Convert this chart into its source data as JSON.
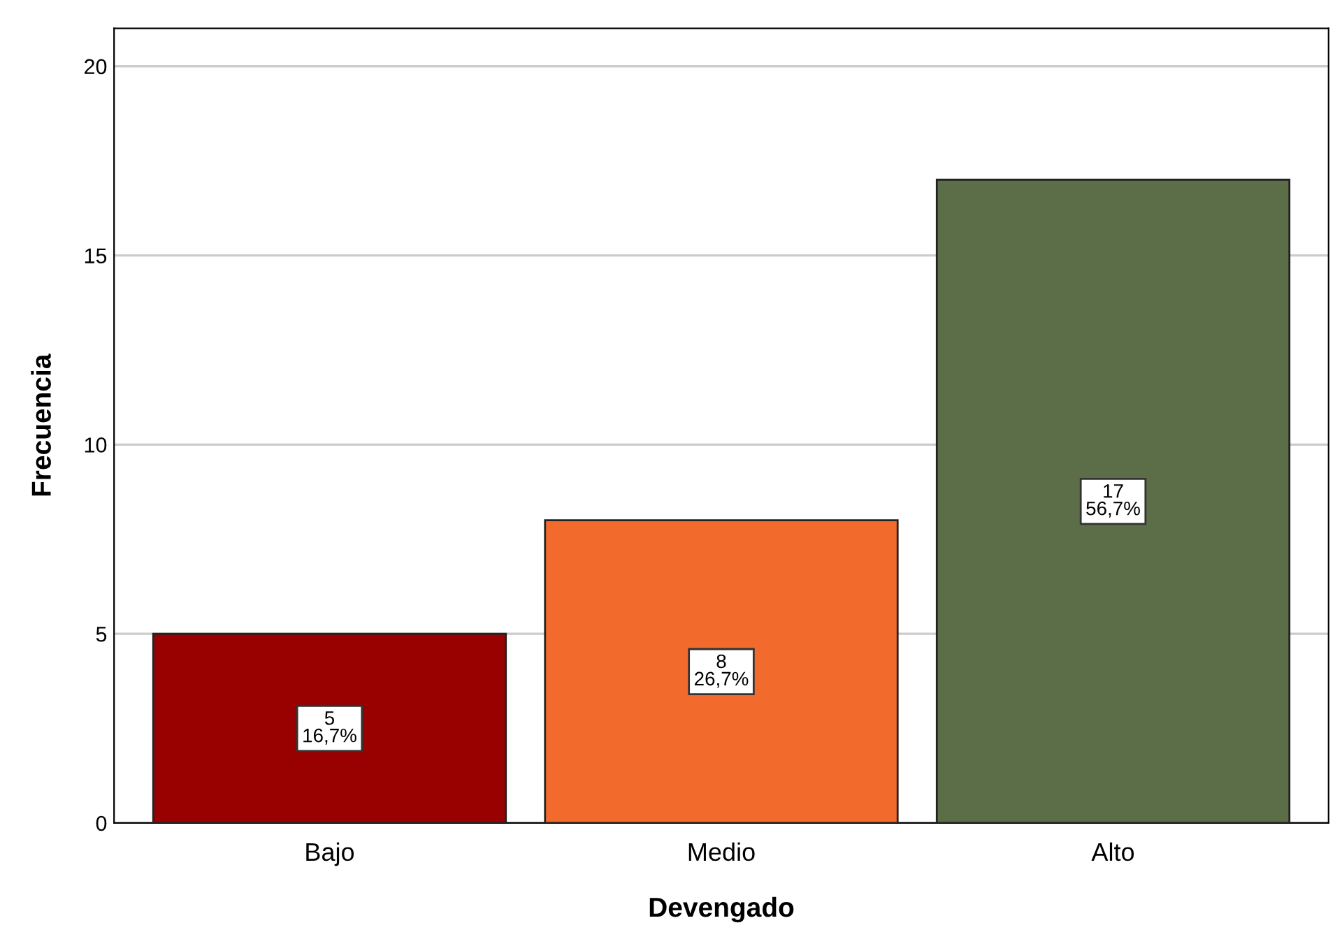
{
  "chart_data": {
    "type": "bar",
    "xlabel": "Devengado",
    "ylabel": "Frecuencia",
    "categories": [
      "Bajo",
      "Medio",
      "Alto"
    ],
    "values": [
      5,
      8,
      17
    ],
    "colors": [
      "#990000",
      "#f26a2c",
      "#5c6e47"
    ],
    "value_labels": [
      "5\n16,7%",
      "8\n26,7%",
      "17\n56,7%"
    ],
    "ylim": [
      0,
      21
    ],
    "yticks": [
      0,
      5,
      10,
      15,
      20
    ],
    "grid": "y"
  }
}
